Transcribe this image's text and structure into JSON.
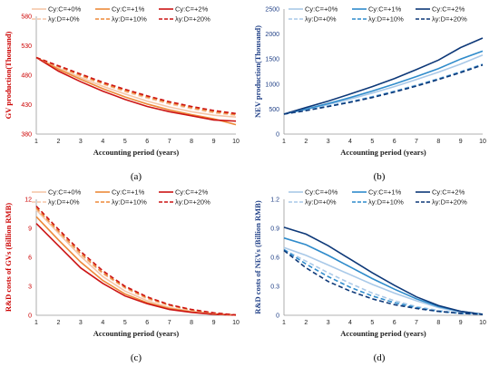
{
  "chart_data": [
    {
      "type": "line",
      "panel_label": "(a)",
      "xlabel": "Accounting period (years)",
      "ylabel": "GV production(Thousand)",
      "axis_color": "#cc0000",
      "x": [
        1,
        2,
        3,
        4,
        5,
        6,
        7,
        8,
        9,
        10
      ],
      "xlim": [
        1,
        10
      ],
      "ylim": [
        380,
        580
      ],
      "yticks": [
        380,
        430,
        480,
        530,
        580
      ],
      "grid": false,
      "legend_position": "top",
      "series": [
        {
          "name": "Cy:C=+0%",
          "color": "#f5c6a8",
          "dash": false,
          "values": [
            510,
            492,
            476,
            461,
            448,
            436,
            426,
            418,
            412,
            409
          ]
        },
        {
          "name": "Cy:C=+1%",
          "color": "#ed8a3a",
          "dash": false,
          "values": [
            510,
            490,
            473,
            457,
            443,
            431,
            421,
            413,
            406,
            396
          ]
        },
        {
          "name": "Cy:C=+2%",
          "color": "#cc1414",
          "dash": false,
          "values": [
            510,
            487,
            469,
            453,
            439,
            427,
            418,
            411,
            404,
            402
          ]
        },
        {
          "name": "λy:D=+0%",
          "color": "#f5c6a8",
          "dash": true,
          "values": [
            510,
            494,
            479,
            465,
            452,
            441,
            431,
            423,
            416,
            412
          ]
        },
        {
          "name": "λy:D=+10%",
          "color": "#ed8a3a",
          "dash": true,
          "values": [
            510,
            495,
            480,
            466,
            454,
            443,
            433,
            425,
            418,
            413
          ]
        },
        {
          "name": "λy:D=+20%",
          "color": "#cc1414",
          "dash": true,
          "values": [
            510,
            496,
            482,
            468,
            456,
            445,
            435,
            427,
            420,
            415
          ]
        }
      ]
    },
    {
      "type": "line",
      "panel_label": "(b)",
      "xlabel": "Accounting period (years)",
      "ylabel": "NEV production(Thousand)",
      "axis_color": "#1f3f86",
      "x": [
        1,
        2,
        3,
        4,
        5,
        6,
        7,
        8,
        9,
        10
      ],
      "xlim": [
        1,
        10
      ],
      "ylim": [
        0,
        2500
      ],
      "yticks": [
        0,
        500,
        1000,
        1500,
        2000,
        2500
      ],
      "grid": false,
      "legend_position": "top",
      "series": [
        {
          "name": "Cy:C=+0%",
          "color": "#a9c9e8",
          "dash": false,
          "values": [
            400,
            490,
            590,
            700,
            820,
            950,
            1090,
            1240,
            1400,
            1580
          ]
        },
        {
          "name": "Cy:C=+1%",
          "color": "#2e8bcb",
          "dash": false,
          "values": [
            400,
            500,
            610,
            730,
            860,
            1000,
            1150,
            1310,
            1500,
            1660
          ]
        },
        {
          "name": "Cy:C=+2%",
          "color": "#0d3878",
          "dash": false,
          "values": [
            400,
            530,
            660,
            800,
            950,
            1110,
            1290,
            1480,
            1730,
            1920
          ]
        },
        {
          "name": "λy:D=+0%",
          "color": "#a9c9e8",
          "dash": true,
          "values": [
            400,
            480,
            560,
            650,
            750,
            860,
            980,
            1110,
            1250,
            1400
          ]
        },
        {
          "name": "λy:D=+10%",
          "color": "#2e8bcb",
          "dash": true,
          "values": [
            400,
            475,
            555,
            640,
            740,
            850,
            970,
            1100,
            1240,
            1390
          ]
        },
        {
          "name": "λy:D=+20%",
          "color": "#0d3878",
          "dash": true,
          "values": [
            400,
            470,
            550,
            635,
            730,
            840,
            960,
            1090,
            1230,
            1380
          ]
        }
      ]
    },
    {
      "type": "line",
      "panel_label": "(c)",
      "xlabel": "Accounting period (years)",
      "ylabel": "R&D costs of GVs (Billion RMB)",
      "axis_color": "#cc0000",
      "x": [
        1,
        2,
        3,
        4,
        5,
        6,
        7,
        8,
        9,
        10
      ],
      "xlim": [
        1,
        10
      ],
      "ylim": [
        0,
        12
      ],
      "yticks": [
        0,
        3,
        6,
        9,
        12
      ],
      "grid": false,
      "legend_position": "top",
      "series": [
        {
          "name": "Cy:C=+0%",
          "color": "#f5c6a8",
          "dash": false,
          "values": [
            10.9,
            8.5,
            6.1,
            4.0,
            2.5,
            1.5,
            0.8,
            0.4,
            0.15,
            0.02
          ]
        },
        {
          "name": "Cy:C=+1%",
          "color": "#ed8a3a",
          "dash": false,
          "values": [
            10.2,
            7.8,
            5.5,
            3.6,
            2.2,
            1.3,
            0.7,
            0.35,
            0.12,
            0.02
          ]
        },
        {
          "name": "Cy:C=+2%",
          "color": "#cc1414",
          "dash": false,
          "values": [
            9.5,
            7.2,
            4.9,
            3.3,
            2.0,
            1.2,
            0.6,
            0.3,
            0.1,
            0.02
          ]
        },
        {
          "name": "λy:D=+0%",
          "color": "#f5c6a8",
          "dash": true,
          "values": [
            11.0,
            8.6,
            6.3,
            4.3,
            2.8,
            1.7,
            1.0,
            0.5,
            0.2,
            0.03
          ]
        },
        {
          "name": "λy:D=+10%",
          "color": "#ed8a3a",
          "dash": true,
          "values": [
            11.1,
            8.7,
            6.4,
            4.4,
            2.9,
            1.8,
            1.05,
            0.55,
            0.22,
            0.03
          ]
        },
        {
          "name": "λy:D=+20%",
          "color": "#cc1414",
          "dash": true,
          "values": [
            11.3,
            8.9,
            6.6,
            4.6,
            3.0,
            1.9,
            1.1,
            0.6,
            0.25,
            0.04
          ]
        }
      ]
    },
    {
      "type": "line",
      "panel_label": "(d)",
      "xlabel": "Accounting period (years)",
      "ylabel": "R&D costs of NEVs (Billion RMB)",
      "axis_color": "#1f3f86",
      "x": [
        1,
        2,
        3,
        4,
        5,
        6,
        7,
        8,
        9,
        10
      ],
      "xlim": [
        1,
        10
      ],
      "ylim": [
        0,
        1.2
      ],
      "yticks": [
        0,
        0.3,
        0.6,
        0.9,
        1.2
      ],
      "ytick_labels": [
        "0",
        "0.3",
        "0.6",
        "0.9",
        "1.2"
      ],
      "grid": false,
      "legend_position": "top",
      "series": [
        {
          "name": "Cy:C=+0%",
          "color": "#a9c9e8",
          "dash": false,
          "values": [
            0.7,
            0.62,
            0.52,
            0.42,
            0.32,
            0.23,
            0.15,
            0.08,
            0.03,
            0.01
          ]
        },
        {
          "name": "Cy:C=+1%",
          "color": "#2e8bcb",
          "dash": false,
          "values": [
            0.8,
            0.73,
            0.62,
            0.5,
            0.38,
            0.27,
            0.17,
            0.09,
            0.04,
            0.01
          ]
        },
        {
          "name": "Cy:C=+2%",
          "color": "#0d3878",
          "dash": false,
          "values": [
            0.91,
            0.84,
            0.72,
            0.58,
            0.44,
            0.31,
            0.19,
            0.1,
            0.04,
            0.01
          ]
        },
        {
          "name": "λy:D=+0%",
          "color": "#a9c9e8",
          "dash": true,
          "values": [
            0.68,
            0.56,
            0.44,
            0.33,
            0.23,
            0.15,
            0.09,
            0.05,
            0.02,
            0.01
          ]
        },
        {
          "name": "λy:D=+10%",
          "color": "#2e8bcb",
          "dash": true,
          "values": [
            0.68,
            0.53,
            0.4,
            0.29,
            0.2,
            0.13,
            0.08,
            0.04,
            0.02,
            0.01
          ]
        },
        {
          "name": "λy:D=+20%",
          "color": "#0d3878",
          "dash": true,
          "values": [
            0.67,
            0.49,
            0.35,
            0.25,
            0.17,
            0.11,
            0.07,
            0.04,
            0.02,
            0.01
          ]
        }
      ]
    }
  ]
}
